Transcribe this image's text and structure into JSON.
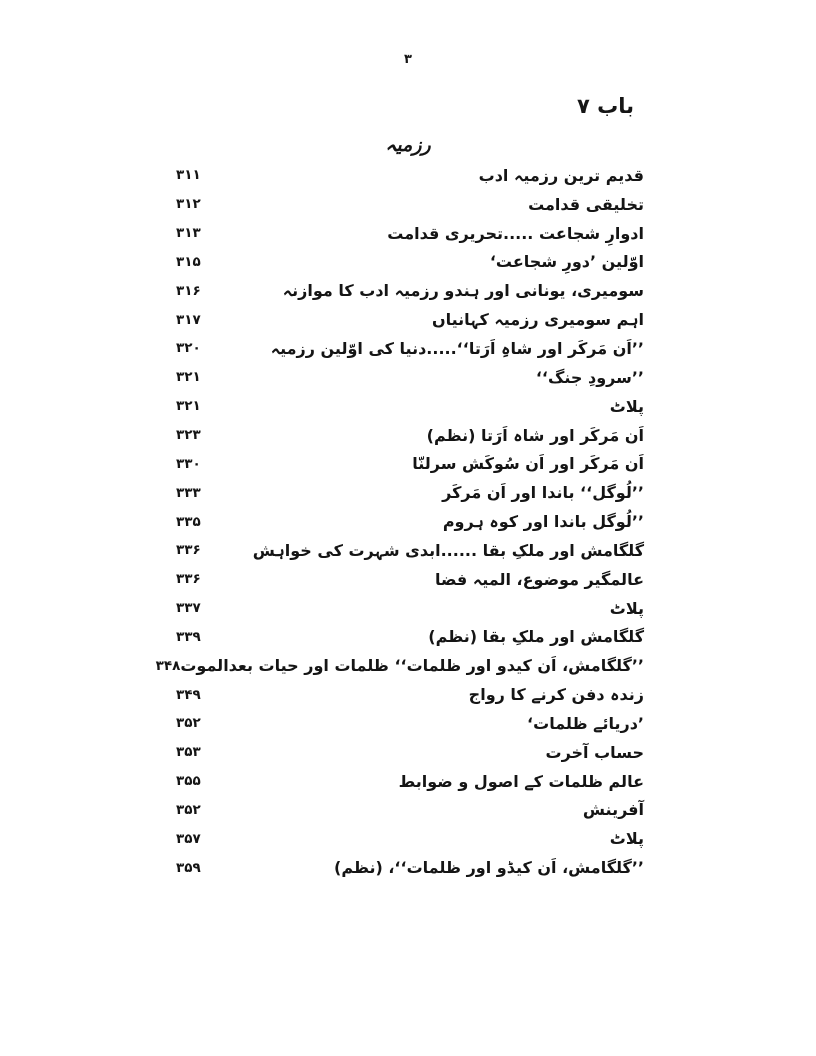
{
  "page": {
    "top_page_number": "۳",
    "chapter_heading": "باب ۷",
    "section_heading": "رزمیہ"
  },
  "toc": {
    "entries": [
      {
        "title": "قدیم ترین رزمیہ ادب",
        "page": "۳۱۱"
      },
      {
        "title": "تخلیقی قدامت",
        "page": "۳۱۲"
      },
      {
        "title": "ادوارِ شجاعت .....تحریری قدامت",
        "page": "۳۱۳"
      },
      {
        "title": "اوّلین ’دورِ شجاعت‘",
        "page": "۳۱۵"
      },
      {
        "title": "سومیری، یونانی اور ہندو رزمیہ ادب کا موازنہ",
        "page": "۳۱۶"
      },
      {
        "title": "اہم سومیری رزمیہ کہانیاں",
        "page": "۳۱۷"
      },
      {
        "title": "’’اَن مَرکَر اور شاہِ اَرَتا‘‘.....دنیا کی اوّلین رزمیہ",
        "page": "۳۲۰"
      },
      {
        "title": "’’سرودِ جنگ‘‘",
        "page": "۳۲۱"
      },
      {
        "title": "پلاٹ",
        "page": "۳۲۱"
      },
      {
        "title": "اَن مَرکَر اور شاہ اَرَتا (نظم)",
        "page": "۳۲۳"
      },
      {
        "title": "اَن مَرکَر اور اَن سُوکَش سرلنّا",
        "page": "۳۳۰"
      },
      {
        "title": "’’لُوگل‘‘ باندا اور اَن مَرکَر",
        "page": "۳۳۳"
      },
      {
        "title": "’’لُوگل باندا اور کوہ ہروم",
        "page": "۳۳۵"
      },
      {
        "title": "گلگامش اور ملکِ بقا ......ابدی شہرت کی خواہش",
        "page": "۳۳۶"
      },
      {
        "title": "عالمگیر موضوع، المیہ فضا",
        "page": "۳۳۶"
      },
      {
        "title": "پلاٹ",
        "page": "۳۳۷"
      },
      {
        "title": "گلگامش اور ملکِ بقا (نظم)",
        "page": "۳۳۹"
      },
      {
        "title": "’’گلگامش، اَن کیدو اور ظلمات‘‘ ظلمات اور حیات بعدالموت",
        "page": "۳۴۸"
      },
      {
        "title": "زندہ دفن کرنے کا رواج",
        "page": "۳۴۹"
      },
      {
        "title": "’دریائے ظلمات‘",
        "page": "۳۵۲"
      },
      {
        "title": "حساب آخرت",
        "page": "۳۵۳"
      },
      {
        "title": "عالم ظلمات کے اصول و ضوابط",
        "page": "۳۵۵"
      },
      {
        "title": "آفرینش",
        "page": "۳۵۲"
      },
      {
        "title": "پلاٹ",
        "page": "۳۵۷"
      },
      {
        "title": "’’گلگامش، اَن کیڈو اور ظلمات‘‘، (نظم)",
        "page": "۳۵۹"
      }
    ]
  }
}
